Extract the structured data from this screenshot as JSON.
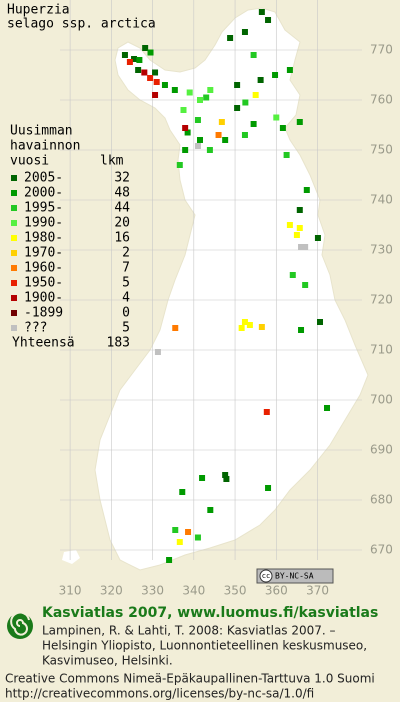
{
  "header": {
    "species": "Huperzia",
    "taxon": "selago ssp. arctica"
  },
  "map": {
    "xlim": [
      293,
      390
    ],
    "ylim": [
      660,
      780
    ],
    "xticks": [
      310,
      320,
      330,
      340,
      350,
      360,
      370
    ],
    "yticks": [
      670,
      680,
      690,
      700,
      710,
      720,
      730,
      740,
      750,
      760,
      770
    ]
  },
  "legend": {
    "heading": [
      "Uusimman",
      "havainnon",
      "vuosi"
    ],
    "count_heading": "lkm",
    "entries": [
      {
        "period": "2005-",
        "count": 32,
        "color": "#006400",
        "squares": [
          [
            356.5,
            777.6
          ],
          [
            358,
            776
          ],
          [
            348.8,
            772.4
          ],
          [
            352.4,
            773.6
          ],
          [
            350.5,
            763
          ],
          [
            350.5,
            758.4
          ],
          [
            326.5,
            766
          ],
          [
            323.3,
            769
          ],
          [
            328.2,
            770.4
          ],
          [
            325.5,
            768.2
          ],
          [
            330.6,
            765.5
          ],
          [
            370.1,
            732.4
          ],
          [
            365.7,
            738
          ],
          [
            370.6,
            715.6
          ],
          [
            347.6,
            685
          ],
          [
            347.9,
            684.2
          ],
          [
            356.2,
            764
          ]
        ]
      },
      {
        "period": "2000-",
        "count": 48,
        "color": "#009a00",
        "squares": [
          [
            359.7,
            765
          ],
          [
            363.3,
            766
          ],
          [
            333,
            763
          ],
          [
            335.4,
            762
          ],
          [
            341.5,
            752
          ],
          [
            347.6,
            752
          ],
          [
            337.9,
            750
          ],
          [
            361.6,
            754.4
          ],
          [
            365.7,
            755.6
          ],
          [
            342,
            684.4
          ],
          [
            358,
            682.4
          ],
          [
            337.2,
            681.6
          ],
          [
            344,
            678
          ],
          [
            367.4,
            742
          ],
          [
            372.3,
            698.4
          ],
          [
            334,
            668
          ],
          [
            326.8,
            768
          ],
          [
            329.5,
            769.5
          ],
          [
            354.5,
            755.2
          ],
          [
            338.5,
            753.5
          ],
          [
            366,
            714
          ]
        ]
      },
      {
        "period": "1995-",
        "count": 44,
        "color": "#22c822",
        "squares": [
          [
            354.5,
            769
          ],
          [
            336.6,
            747
          ],
          [
            343.9,
            750
          ],
          [
            352.4,
            753
          ],
          [
            341,
            756
          ],
          [
            362.5,
            749
          ],
          [
            364,
            725
          ],
          [
            367,
            723
          ],
          [
            335.5,
            674
          ],
          [
            341,
            672.5
          ],
          [
            352.5,
            759.5
          ],
          [
            343,
            760.5
          ]
        ]
      },
      {
        "period": "1990-",
        "count": 20,
        "color": "#55f040",
        "squares": [
          [
            339,
            761.5
          ],
          [
            341.5,
            760
          ],
          [
            344,
            762
          ],
          [
            337.5,
            758
          ],
          [
            360,
            756.5
          ]
        ]
      },
      {
        "period": "1980-",
        "count": 16,
        "color": "#ffff00",
        "squares": [
          [
            355,
            761
          ],
          [
            363.3,
            735
          ],
          [
            365.7,
            734.4
          ],
          [
            353.6,
            715
          ],
          [
            352.4,
            715.6
          ],
          [
            351.6,
            714.4
          ],
          [
            336.6,
            671.6
          ],
          [
            365,
            733
          ]
        ]
      },
      {
        "period": "1970-",
        "count": 2,
        "color": "#ffd000",
        "squares": [
          [
            346.8,
            755.6
          ],
          [
            356.5,
            714.6
          ]
        ]
      },
      {
        "period": "1960-",
        "count": 7,
        "color": "#ff7a00",
        "squares": [
          [
            335.5,
            714.4
          ],
          [
            338.6,
            673.6
          ],
          [
            346,
            753
          ]
        ]
      },
      {
        "period": "1950-",
        "count": 5,
        "color": "#e82000",
        "squares": [
          [
            324.5,
            767.6
          ],
          [
            329.4,
            764.4
          ],
          [
            331,
            763.6
          ],
          [
            357.7,
            697.6
          ]
        ]
      },
      {
        "period": "1900-",
        "count": 4,
        "color": "#b40000",
        "squares": [
          [
            330.6,
            761
          ],
          [
            337.9,
            754.4
          ],
          [
            328,
            765.5
          ]
        ]
      },
      {
        "period": "-1899",
        "count": 0,
        "color": "#700000",
        "squares": []
      },
      {
        "period": "???",
        "count": 5,
        "color": "#c0c0c0",
        "squares": [
          [
            331.3,
            709.6
          ],
          [
            366,
            730.6
          ],
          [
            367,
            730.6
          ],
          [
            341,
            750.8
          ]
        ]
      }
    ],
    "total_label": "Yhteensä",
    "total": 183
  },
  "badge": {
    "cc": "cc",
    "text": "BY-NC-SA"
  },
  "footer": {
    "title": "Kasviatlas 2007, www.luomus.fi/kasviatlas",
    "citation": [
      "Lampinen, R. & Lahti, T. 2008: Kasviatlas 2007. –",
      "Helsingin Yliopisto, Luonnontieteellinen keskusmuseo,",
      "Kasvimuseo, Helsinki."
    ],
    "license": "Creative Commons Nimeä-Epäkaupallinen-Tarttuva 1.0 Suomi",
    "url": "http://creativecommons.org/licenses/by-nc-sa/1.0/fi"
  }
}
